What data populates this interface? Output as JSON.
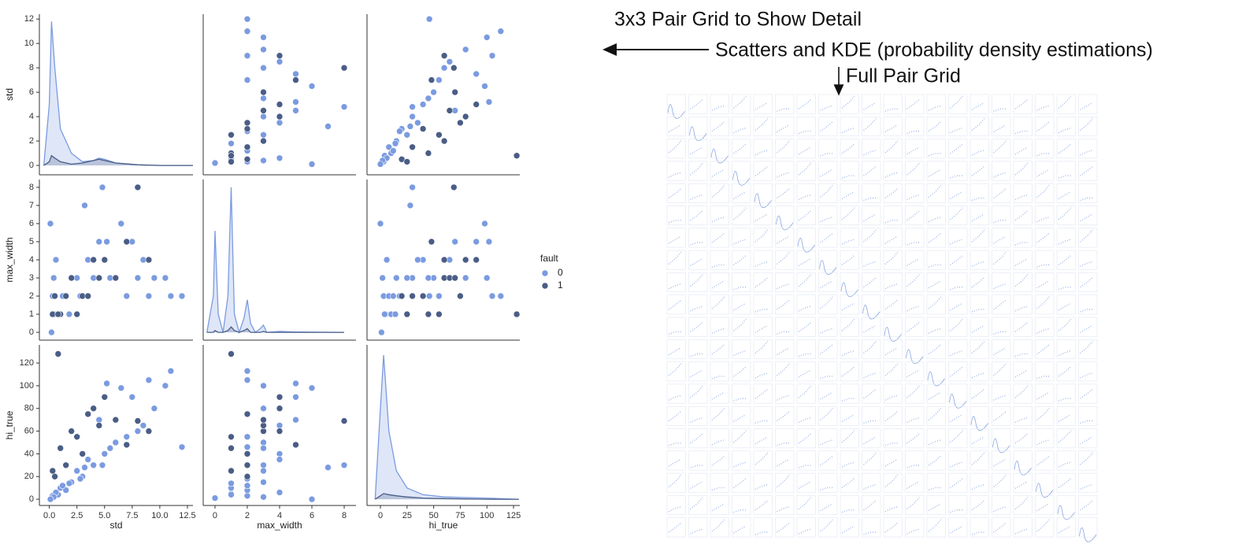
{
  "annotations": {
    "title": "3x3 Pair Grid to Show Detail",
    "left_arrow": "Scatters and KDE (probability density estimations)",
    "down_arrow": "Full Pair Grid"
  },
  "chart_data": {
    "type": "pairplot",
    "variables": [
      {
        "label": "std",
        "xlim": [
          -0.9,
          13.0
        ],
        "ylim": [
          -0.77,
          12.4
        ],
        "xticks": [
          {
            "value": 0,
            "label": "0.0"
          },
          2.5,
          {
            "value": 5,
            "label": "5.0"
          },
          7.5,
          {
            "value": 10,
            "label": "10.0"
          },
          12.5
        ],
        "yticks": [
          0,
          2,
          4,
          6,
          8,
          10,
          12
        ]
      },
      {
        "label": "max_width",
        "xlim": [
          -0.73,
          8.73
        ],
        "ylim": [
          -0.43,
          8.43
        ],
        "xticks": [
          0,
          2,
          4,
          6,
          8
        ],
        "yticks": [
          0,
          1,
          2,
          3,
          4,
          5,
          6,
          7,
          8
        ]
      },
      {
        "label": "hi_true",
        "xlim": [
          -12.6,
          130.9
        ],
        "ylim": [
          -5.5,
          136
        ],
        "xticks": [
          0,
          25,
          50,
          75,
          100,
          125
        ],
        "yticks": [
          0,
          20,
          40,
          60,
          80,
          100,
          120
        ]
      }
    ],
    "hue": {
      "title": "fault",
      "levels": [
        {
          "name": "0",
          "color": "#7b9be0"
        },
        {
          "name": "1",
          "color": "#4a5d86"
        }
      ]
    },
    "points": {
      "std": [
        0.2,
        0.5,
        0.3,
        1.0,
        1.5,
        2.0,
        0.8,
        3.0,
        4.0,
        5.0,
        6.0,
        7.0,
        8.0,
        9.5,
        10.5,
        11.0,
        12.0,
        7.5,
        4.5,
        6.5,
        2.5,
        3.5,
        5.5,
        1.2,
        0.6,
        0.4,
        9.0,
        8.5,
        2.8,
        1.8,
        4.8,
        3.2,
        0.1,
        5.2,
        0.5,
        1.0,
        2.0,
        3.0,
        4.0,
        4.5,
        5.0,
        1.5,
        0.3,
        6.0,
        2.5,
        8.0,
        9.0,
        3.5,
        0.8,
        7.0
      ],
      "max_width": [
        0,
        1,
        2,
        1,
        2,
        3,
        1,
        2,
        3,
        4,
        3,
        2,
        3,
        3,
        3,
        2,
        2,
        5,
        5,
        6,
        3,
        4,
        3,
        2,
        4,
        3,
        2,
        4,
        2,
        1,
        8,
        7,
        6,
        5,
        2,
        1,
        3,
        2,
        4,
        3,
        4,
        2,
        1,
        3,
        1,
        8,
        4,
        2,
        1,
        5
      ],
      "hi_true": [
        1,
        5,
        3,
        10,
        8,
        15,
        4,
        20,
        30,
        40,
        50,
        55,
        60,
        80,
        100,
        113,
        46,
        90,
        70,
        98,
        25,
        35,
        45,
        12,
        6,
        2,
        105,
        65,
        18,
        14,
        30,
        28,
        0,
        102,
        20,
        45,
        60,
        40,
        80,
        65,
        90,
        30,
        25,
        70,
        55,
        69,
        60,
        75,
        128,
        48
      ],
      "fault": [
        0,
        0,
        0,
        0,
        0,
        0,
        0,
        0,
        0,
        0,
        0,
        0,
        0,
        0,
        0,
        0,
        0,
        0,
        0,
        0,
        0,
        0,
        0,
        0,
        0,
        0,
        0,
        0,
        0,
        0,
        0,
        0,
        0,
        0,
        1,
        1,
        1,
        1,
        1,
        1,
        1,
        1,
        1,
        1,
        1,
        1,
        1,
        1,
        1,
        1
      ]
    },
    "kde": [
      {
        "x": [
          -0.5,
          0,
          0.2,
          0.5,
          1,
          2,
          3,
          4,
          4.5,
          5,
          6,
          8,
          10,
          13
        ],
        "densities": [
          [
            0,
            5,
            11.8,
            8,
            3,
            1,
            0.3,
            0.4,
            0.6,
            0.5,
            0.2,
            0.05,
            0,
            0
          ],
          [
            0,
            0.3,
            0.8,
            0.6,
            0.3,
            0.1,
            0.2,
            0.4,
            0.5,
            0.4,
            0.2,
            0.05,
            0,
            0
          ]
        ]
      },
      {
        "x": [
          -0.5,
          -0.1,
          0,
          0.2,
          0.5,
          0.8,
          1,
          1.2,
          1.5,
          1.8,
          2,
          2.2,
          2.5,
          2.8,
          3,
          3.2,
          4,
          5,
          8
        ],
        "densities": [
          [
            0,
            2,
            5.6,
            1,
            0,
            2,
            8,
            1,
            0,
            0.8,
            1.8,
            0.5,
            0,
            0.2,
            0.4,
            0,
            0.05,
            0.02,
            0
          ],
          [
            0,
            0,
            0.1,
            0,
            0,
            0.1,
            0.3,
            0.1,
            0,
            0.1,
            0.2,
            0,
            0,
            0,
            0.05,
            0,
            0,
            0,
            0
          ]
        ]
      },
      {
        "x": [
          -5,
          0,
          3,
          8,
          15,
          25,
          40,
          60,
          100,
          130
        ],
        "densities": [
          [
            0,
            80,
            127,
            60,
            25,
            10,
            4,
            2,
            1,
            0
          ],
          [
            0,
            3,
            5,
            4,
            3,
            2,
            1,
            0.5,
            0,
            0
          ]
        ]
      }
    ]
  }
}
